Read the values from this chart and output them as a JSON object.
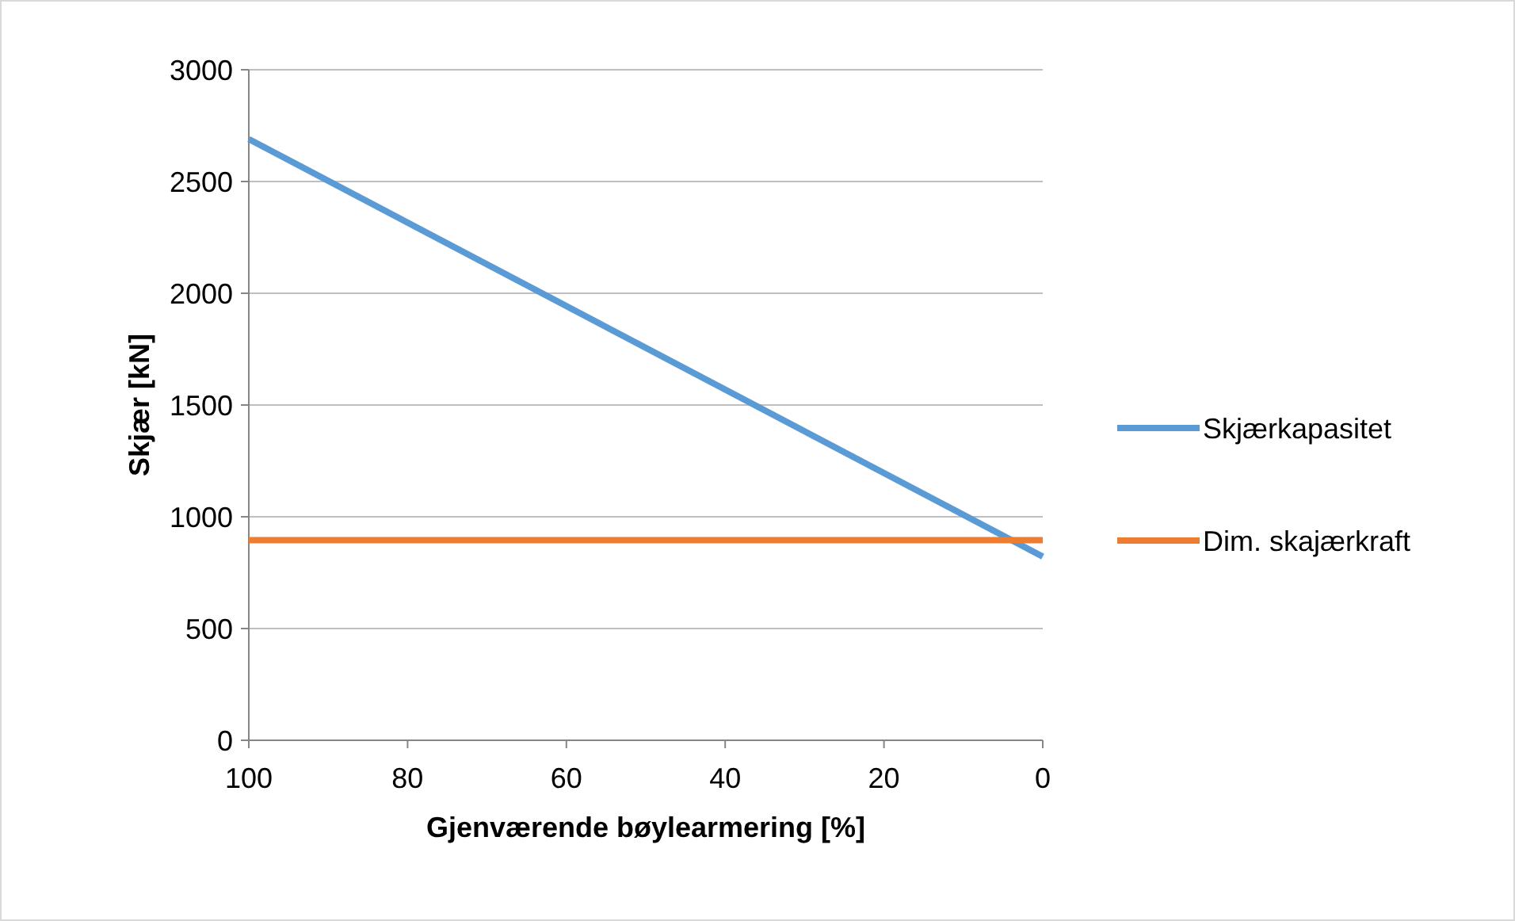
{
  "chart_data": {
    "type": "line",
    "xlabel": "Gjenværende bøylearmering [%]",
    "ylabel": "Skjær [kN]",
    "x": [
      100,
      0
    ],
    "series": [
      {
        "name": "Skjærkapasitet",
        "color": "#5b9bd5",
        "values": [
          2690,
          822
        ]
      },
      {
        "name": "Dim. skajærkraft",
        "color": "#ed7d31",
        "values": [
          895,
          895
        ]
      }
    ],
    "xlim": [
      100,
      0
    ],
    "xticks": [
      100,
      80,
      60,
      40,
      20,
      0
    ],
    "ylim": [
      0,
      3000
    ],
    "yticks": [
      0,
      500,
      1000,
      1500,
      2000,
      2500,
      3000
    ],
    "grid": "y",
    "legend": "right",
    "marker": "none",
    "line_style": "solid"
  }
}
